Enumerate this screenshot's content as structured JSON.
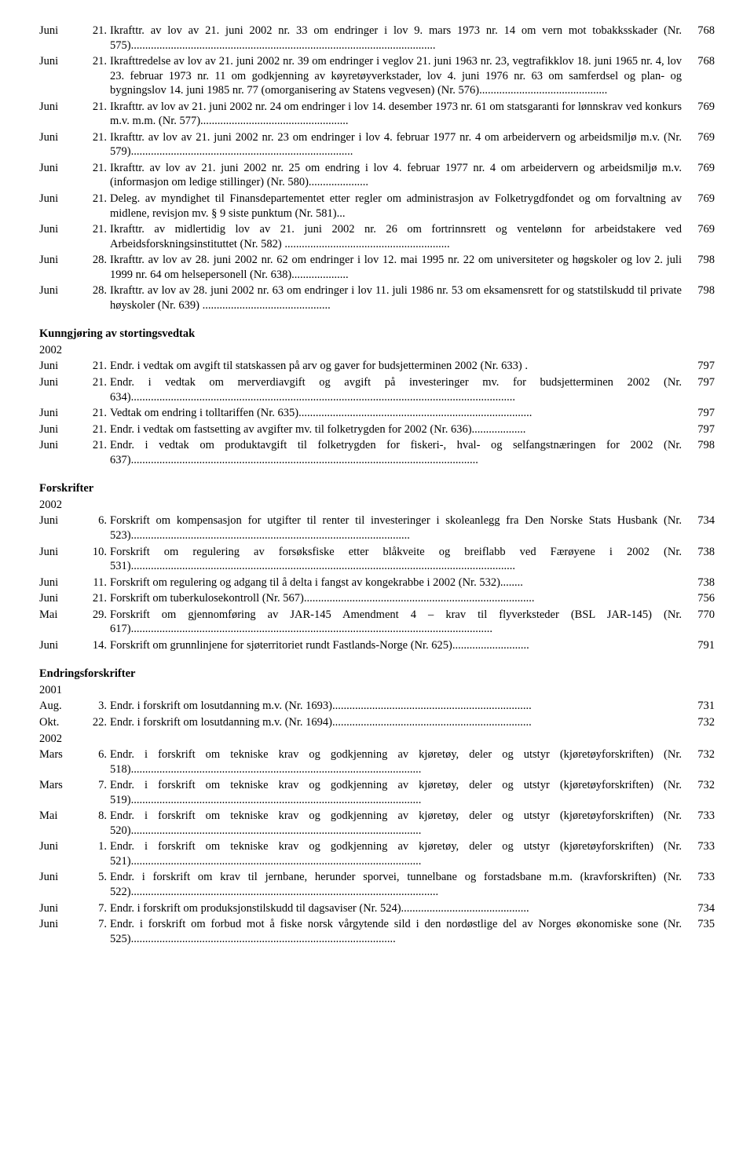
{
  "sections": [
    {
      "heading": null,
      "year": null,
      "rows": [
        {
          "month": "Juni",
          "day": "21.",
          "text": "Ikrafttr. av lov av 21. juni 2002 nr. 33 om endringer i lov 9. mars 1973 nr. 14 om vern mot tobakksskader (Nr. 575)...........................................................................................................",
          "page": "768"
        },
        {
          "month": "Juni",
          "day": "21.",
          "text": "Ikrafttredelse av lov av 21. juni 2002 nr. 39 om endringer i veglov 21. juni 1963 nr. 23, vegtrafikklov 18. juni 1965 nr. 4, lov 23. februar 1973 nr. 11 om godkjenning av køyretøyverkstader, lov 4. juni 1976 nr. 63 om samferdsel og plan- og bygningslov 14. juni 1985 nr. 77 (omorganisering av Statens vegvesen) (Nr. 576).............................................",
          "page": "768"
        },
        {
          "month": "Juni",
          "day": "21.",
          "text": "Ikrafttr. av lov av 21. juni 2002 nr. 24 om endringer i lov 14. desember 1973 nr. 61 om statsgaranti for lønnskrav ved konkurs m.v. m.m. (Nr. 577)....................................................",
          "page": "769"
        },
        {
          "month": "Juni",
          "day": "21.",
          "text": "Ikrafttr. av lov av 21. juni 2002 nr. 23 om endringer i lov 4. februar 1977 nr. 4 om arbeidervern og arbeidsmiljø m.v. (Nr. 579)..............................................................................",
          "page": "769"
        },
        {
          "month": "Juni",
          "day": "21.",
          "text": "Ikrafttr. av lov av 21. juni 2002 nr. 25 om endring i lov 4. februar 1977 nr. 4 om arbeidervern og arbeidsmiljø m.v. (informasjon om ledige stillinger) (Nr. 580).....................",
          "page": "769"
        },
        {
          "month": "Juni",
          "day": "21.",
          "text": "Deleg. av myndighet til Finansdepartementet etter regler om administrasjon av Folketrygdfondet og om forvaltning av midlene, revisjon mv. § 9 siste punktum (Nr. 581)...",
          "page": "769"
        },
        {
          "month": "Juni",
          "day": "21.",
          "text": "Ikrafttr. av midlertidig lov av 21. juni 2002 nr. 26 om fortrinnsrett og ventelønn for arbeidstakere ved Arbeidsforskningsinstituttet (Nr. 582) ..........................................................",
          "page": "769"
        },
        {
          "month": "Juni",
          "day": "28.",
          "text": "Ikrafttr. av lov av 28. juni 2002 nr. 62 om endringer i lov 12. mai 1995 nr. 22 om universiteter og høgskoler og lov 2. juli 1999 nr. 64 om helsepersonell (Nr. 638)....................",
          "page": "798"
        },
        {
          "month": "Juni",
          "day": "28.",
          "text": "Ikrafttr. av lov av 28. juni 2002 nr. 63 om endringer i lov 11. juli 1986 nr. 53 om eksamensrett for og statstilskudd til private høyskoler (Nr. 639) .............................................",
          "page": "798"
        }
      ]
    },
    {
      "heading": "Kunngjøring av stortingsvedtak",
      "year": "2002",
      "rows": [
        {
          "month": "Juni",
          "day": "21.",
          "text": "Endr. i vedtak om avgift til statskassen på arv og gaver for budsjetterminen 2002 (Nr. 633) .",
          "page": "797"
        },
        {
          "month": "Juni",
          "day": "21.",
          "text": "Endr. i vedtak om merverdiavgift og avgift på investeringer mv. for budsjetterminen 2002 (Nr. 634).......................................................................................................................................",
          "page": "797"
        },
        {
          "month": "Juni",
          "day": "21.",
          "text": "Vedtak om endring i tolltariffen (Nr. 635)..................................................................................",
          "page": "797"
        },
        {
          "month": "Juni",
          "day": "21.",
          "text": "Endr. i vedtak om fastsetting av avgifter mv. til folketrygden for 2002 (Nr. 636)...................",
          "page": "797"
        },
        {
          "month": "Juni",
          "day": "21.",
          "text": "Endr. i vedtak om produktavgift til folketrygden for fiskeri-, hval- og selfangstnæringen for 2002 (Nr. 637)..........................................................................................................................",
          "page": "798"
        }
      ]
    },
    {
      "heading": "Forskrifter",
      "year": "2002",
      "rows": [
        {
          "month": "Juni",
          "day": "6.",
          "text": "Forskrift om kompensasjon for utgifter til renter til investeringer i skoleanlegg fra Den Norske Stats Husbank (Nr. 523)..................................................................................................",
          "page": "734"
        },
        {
          "month": "Juni",
          "day": "10.",
          "text": "Forskrift om regulering av forsøksfiske etter blåkveite og breiflabb ved Færøyene i 2002 (Nr. 531).......................................................................................................................................",
          "page": "738"
        },
        {
          "month": "Juni",
          "day": "11.",
          "text": "Forskrift om regulering og adgang til å delta i fangst av kongekrabbe i 2002 (Nr. 532)........",
          "page": "738"
        },
        {
          "month": "Juni",
          "day": "21.",
          "text": "Forskrift om tuberkulosekontroll (Nr. 567).................................................................................",
          "page": "756"
        },
        {
          "month": "Mai",
          "day": "29.",
          "text": "Forskrift om gjennomføring av JAR-145 Amendment 4 – krav til flyverksteder (BSL JAR-145) (Nr. 617)...............................................................................................................................",
          "page": "770"
        },
        {
          "month": "Juni",
          "day": "14.",
          "text": "Forskrift om grunnlinjene for sjøterritoriet rundt Fastlands-Norge (Nr. 625)...........................",
          "page": "791"
        }
      ]
    },
    {
      "heading": "Endringsforskrifter",
      "year": "2001",
      "rows": [
        {
          "month": "Aug.",
          "day": "3.",
          "text": "Endr. i forskrift om losutdanning m.v. (Nr. 1693)......................................................................",
          "page": "731"
        },
        {
          "month": "Okt.",
          "day": "22.",
          "text": "Endr. i forskrift om losutdanning m.v. (Nr. 1694)......................................................................",
          "page": "732"
        }
      ]
    },
    {
      "heading": null,
      "year": "2002",
      "rows": [
        {
          "month": "Mars",
          "day": "6.",
          "text": "Endr. i forskrift om tekniske krav og godkjenning av kjøretøy, deler og utstyr (kjøretøyforskriften) (Nr. 518)......................................................................................................",
          "page": "732"
        },
        {
          "month": "Mars",
          "day": "7.",
          "text": "Endr. i forskrift om tekniske krav og godkjenning av kjøretøy, deler og utstyr (kjøretøyforskriften) (Nr. 519)......................................................................................................",
          "page": "732"
        },
        {
          "month": "Mai",
          "day": "8.",
          "text": "Endr. i forskrift om tekniske krav og godkjenning av kjøretøy, deler og utstyr (kjøretøyforskriften) (Nr. 520)......................................................................................................",
          "page": "733"
        },
        {
          "month": "Juni",
          "day": "1.",
          "text": "Endr. i forskrift om tekniske krav og godkjenning av kjøretøy, deler og utstyr (kjøretøyforskriften) (Nr. 521)......................................................................................................",
          "page": "733"
        },
        {
          "month": "Juni",
          "day": "5.",
          "text": "Endr. i forskrift om krav til jernbane, herunder sporvei, tunnelbane og forstadsbane m.m. (kravforskriften) (Nr. 522)............................................................................................................",
          "page": "733"
        },
        {
          "month": "Juni",
          "day": "7.",
          "text": "Endr. i forskrift om produksjonstilskudd til dagsaviser (Nr. 524).............................................",
          "page": "734"
        },
        {
          "month": "Juni",
          "day": "7.",
          "text": "Endr. i forskrift om forbud mot å fiske norsk vårgytende sild i den nordøstlige del av Norges økonomiske sone (Nr. 525).............................................................................................",
          "page": "735"
        }
      ]
    }
  ]
}
